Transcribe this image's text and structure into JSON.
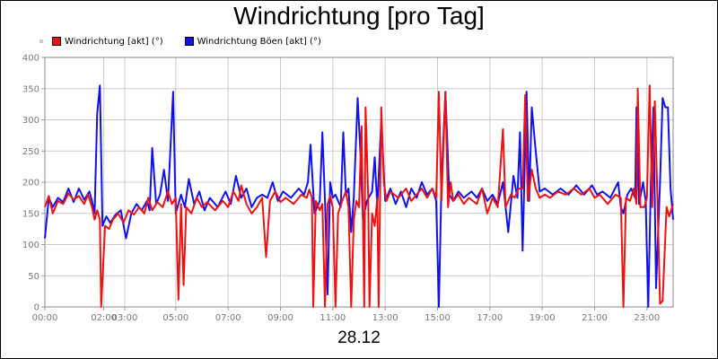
{
  "window": {
    "title": "Windrichtung [pro Tag]",
    "date_label": "28.12"
  },
  "legend": {
    "items": [
      {
        "label": "Windrichtung [akt] (°)",
        "color": "#ee1111"
      },
      {
        "label": "Windrichtung Böen [akt] (°)",
        "color": "#1111ee"
      }
    ]
  },
  "chart_data": {
    "type": "line",
    "title": "Windrichtung [pro Tag]",
    "xlabel": "28.12",
    "ylabel": "",
    "ylim": [
      0,
      400
    ],
    "xlim": [
      0,
      24
    ],
    "yticks": [
      0,
      50,
      100,
      150,
      200,
      250,
      300,
      350,
      400
    ],
    "xticks": [
      {
        "x": 0,
        "label": "00:00"
      },
      {
        "x": 2.25,
        "label": "02:00"
      },
      {
        "x": 3.05,
        "label": "03:00"
      },
      {
        "x": 5.0,
        "label": "05:00"
      },
      {
        "x": 7.0,
        "label": "07:00"
      },
      {
        "x": 9.0,
        "label": "09:00"
      },
      {
        "x": 11.0,
        "label": "11:00"
      },
      {
        "x": 13.0,
        "label": "13:00"
      },
      {
        "x": 15.0,
        "label": "15:00"
      },
      {
        "x": 17.0,
        "label": "17:00"
      },
      {
        "x": 19.0,
        "label": "19:00"
      },
      {
        "x": 21.0,
        "label": "21:00"
      },
      {
        "x": 23.0,
        "label": "23:00"
      }
    ],
    "grid": true,
    "legend_position": "top-left",
    "series": [
      {
        "name": "Windrichtung [akt] (°)",
        "color": "#ee1111",
        "points": [
          [
            0.0,
            160
          ],
          [
            0.15,
            178
          ],
          [
            0.3,
            150
          ],
          [
            0.5,
            170
          ],
          [
            0.7,
            165
          ],
          [
            0.9,
            182
          ],
          [
            1.1,
            172
          ],
          [
            1.3,
            178
          ],
          [
            1.5,
            165
          ],
          [
            1.65,
            180
          ],
          [
            1.8,
            160
          ],
          [
            1.9,
            140
          ],
          [
            2.0,
            155
          ],
          [
            2.1,
            140
          ],
          [
            2.15,
            0
          ],
          [
            2.3,
            130
          ],
          [
            2.45,
            125
          ],
          [
            2.6,
            140
          ],
          [
            2.8,
            150
          ],
          [
            3.0,
            135
          ],
          [
            3.2,
            155
          ],
          [
            3.4,
            148
          ],
          [
            3.6,
            160
          ],
          [
            3.8,
            150
          ],
          [
            3.95,
            175
          ],
          [
            4.1,
            155
          ],
          [
            4.3,
            168
          ],
          [
            4.5,
            160
          ],
          [
            4.7,
            185
          ],
          [
            4.85,
            165
          ],
          [
            5.0,
            175
          ],
          [
            5.1,
            12
          ],
          [
            5.2,
            165
          ],
          [
            5.3,
            35
          ],
          [
            5.4,
            160
          ],
          [
            5.6,
            150
          ],
          [
            5.8,
            175
          ],
          [
            6.0,
            160
          ],
          [
            6.2,
            168
          ],
          [
            6.5,
            155
          ],
          [
            6.8,
            170
          ],
          [
            7.0,
            160
          ],
          [
            7.2,
            185
          ],
          [
            7.4,
            170
          ],
          [
            7.5,
            195
          ],
          [
            7.7,
            165
          ],
          [
            7.9,
            150
          ],
          [
            8.1,
            160
          ],
          [
            8.3,
            175
          ],
          [
            8.45,
            80
          ],
          [
            8.6,
            170
          ],
          [
            8.8,
            185
          ],
          [
            9.0,
            168
          ],
          [
            9.2,
            175
          ],
          [
            9.5,
            165
          ],
          [
            9.8,
            180
          ],
          [
            10.0,
            175
          ],
          [
            10.1,
            188
          ],
          [
            10.2,
            175
          ],
          [
            10.25,
            0
          ],
          [
            10.35,
            170
          ],
          [
            10.5,
            155
          ],
          [
            10.6,
            165
          ],
          [
            10.7,
            0
          ],
          [
            10.8,
            165
          ],
          [
            10.9,
            178
          ],
          [
            11.0,
            160
          ],
          [
            11.1,
            0
          ],
          [
            11.2,
            150
          ],
          [
            11.4,
            175
          ],
          [
            11.5,
            185
          ],
          [
            11.6,
            160
          ],
          [
            11.7,
            0
          ],
          [
            11.8,
            140
          ],
          [
            11.9,
            170
          ],
          [
            12.0,
            160
          ],
          [
            12.1,
            290
          ],
          [
            12.2,
            0
          ],
          [
            12.25,
            320
          ],
          [
            12.35,
            180
          ],
          [
            12.4,
            0
          ],
          [
            12.5,
            150
          ],
          [
            12.6,
            130
          ],
          [
            12.7,
            175
          ],
          [
            12.75,
            0
          ],
          [
            12.85,
            320
          ],
          [
            12.95,
            200
          ],
          [
            13.05,
            170
          ],
          [
            13.2,
            185
          ],
          [
            13.5,
            175
          ],
          [
            13.8,
            190
          ],
          [
            14.0,
            170
          ],
          [
            14.2,
            180
          ],
          [
            14.4,
            190
          ],
          [
            14.6,
            175
          ],
          [
            14.8,
            190
          ],
          [
            14.95,
            175
          ],
          [
            15.05,
            345
          ],
          [
            15.15,
            170
          ],
          [
            15.3,
            345
          ],
          [
            15.4,
            160
          ],
          [
            15.5,
            200
          ],
          [
            15.6,
            170
          ],
          [
            15.8,
            180
          ],
          [
            16.0,
            165
          ],
          [
            16.2,
            175
          ],
          [
            16.5,
            165
          ],
          [
            16.7,
            190
          ],
          [
            16.9,
            150
          ],
          [
            17.1,
            175
          ],
          [
            17.3,
            160
          ],
          [
            17.5,
            285
          ],
          [
            17.6,
            160
          ],
          [
            17.8,
            180
          ],
          [
            17.95,
            175
          ],
          [
            18.1,
            190
          ],
          [
            18.25,
            190
          ],
          [
            18.35,
            340
          ],
          [
            18.45,
            170
          ],
          [
            18.6,
            220
          ],
          [
            18.75,
            190
          ],
          [
            18.9,
            175
          ],
          [
            19.1,
            180
          ],
          [
            19.3,
            175
          ],
          [
            19.6,
            185
          ],
          [
            19.9,
            180
          ],
          [
            20.2,
            190
          ],
          [
            20.5,
            180
          ],
          [
            20.8,
            190
          ],
          [
            21.0,
            175
          ],
          [
            21.2,
            180
          ],
          [
            21.5,
            165
          ],
          [
            21.8,
            180
          ],
          [
            22.0,
            175
          ],
          [
            22.1,
            0
          ],
          [
            22.2,
            175
          ],
          [
            22.35,
            170
          ],
          [
            22.5,
            190
          ],
          [
            22.6,
            165
          ],
          [
            22.65,
            350
          ],
          [
            22.75,
            160
          ],
          [
            22.9,
            160
          ],
          [
            23.0,
            175
          ],
          [
            23.1,
            355
          ],
          [
            23.2,
            160
          ],
          [
            23.3,
            330
          ],
          [
            23.4,
            175
          ],
          [
            23.5,
            5
          ],
          [
            23.6,
            10
          ],
          [
            23.75,
            160
          ],
          [
            23.85,
            145
          ],
          [
            24.0,
            165
          ]
        ]
      },
      {
        "name": "Windrichtung Böen [akt] (°)",
        "color": "#1111ee",
        "points": [
          [
            0.0,
            110
          ],
          [
            0.15,
            175
          ],
          [
            0.3,
            160
          ],
          [
            0.5,
            175
          ],
          [
            0.7,
            168
          ],
          [
            0.9,
            190
          ],
          [
            1.1,
            168
          ],
          [
            1.3,
            190
          ],
          [
            1.5,
            172
          ],
          [
            1.7,
            185
          ],
          [
            1.8,
            170
          ],
          [
            1.9,
            150
          ],
          [
            2.0,
            310
          ],
          [
            2.1,
            355
          ],
          [
            2.2,
            130
          ],
          [
            2.35,
            145
          ],
          [
            2.5,
            135
          ],
          [
            2.7,
            148
          ],
          [
            2.9,
            155
          ],
          [
            3.1,
            110
          ],
          [
            3.3,
            150
          ],
          [
            3.5,
            165
          ],
          [
            3.7,
            155
          ],
          [
            3.9,
            170
          ],
          [
            4.0,
            155
          ],
          [
            4.1,
            255
          ],
          [
            4.25,
            165
          ],
          [
            4.4,
            180
          ],
          [
            4.55,
            220
          ],
          [
            4.7,
            170
          ],
          [
            4.9,
            345
          ],
          [
            5.0,
            150
          ],
          [
            5.2,
            180
          ],
          [
            5.35,
            160
          ],
          [
            5.5,
            205
          ],
          [
            5.7,
            165
          ],
          [
            5.9,
            185
          ],
          [
            6.1,
            155
          ],
          [
            6.3,
            175
          ],
          [
            6.6,
            160
          ],
          [
            6.9,
            185
          ],
          [
            7.1,
            165
          ],
          [
            7.3,
            210
          ],
          [
            7.5,
            175
          ],
          [
            7.7,
            190
          ],
          [
            7.9,
            160
          ],
          [
            8.1,
            175
          ],
          [
            8.3,
            180
          ],
          [
            8.5,
            175
          ],
          [
            8.7,
            200
          ],
          [
            8.9,
            170
          ],
          [
            9.1,
            185
          ],
          [
            9.4,
            175
          ],
          [
            9.7,
            190
          ],
          [
            9.9,
            180
          ],
          [
            10.05,
            200
          ],
          [
            10.15,
            260
          ],
          [
            10.3,
            150
          ],
          [
            10.5,
            170
          ],
          [
            10.6,
            280
          ],
          [
            10.7,
            170
          ],
          [
            10.8,
            20
          ],
          [
            10.9,
            200
          ],
          [
            11.0,
            175
          ],
          [
            11.1,
            180
          ],
          [
            11.3,
            160
          ],
          [
            11.4,
            280
          ],
          [
            11.5,
            180
          ],
          [
            11.6,
            190
          ],
          [
            11.7,
            120
          ],
          [
            11.8,
            175
          ],
          [
            11.95,
            335
          ],
          [
            12.05,
            250
          ],
          [
            12.15,
            140
          ],
          [
            12.3,
            170
          ],
          [
            12.5,
            185
          ],
          [
            12.6,
            240
          ],
          [
            12.7,
            160
          ],
          [
            12.85,
            300
          ],
          [
            13.0,
            170
          ],
          [
            13.2,
            190
          ],
          [
            13.4,
            165
          ],
          [
            13.6,
            185
          ],
          [
            13.8,
            160
          ],
          [
            14.0,
            190
          ],
          [
            14.2,
            175
          ],
          [
            14.4,
            200
          ],
          [
            14.6,
            180
          ],
          [
            14.8,
            190
          ],
          [
            14.95,
            170
          ],
          [
            15.05,
            0
          ],
          [
            15.15,
            200
          ],
          [
            15.3,
            345
          ],
          [
            15.45,
            180
          ],
          [
            15.6,
            170
          ],
          [
            15.8,
            185
          ],
          [
            16.0,
            175
          ],
          [
            16.3,
            185
          ],
          [
            16.5,
            175
          ],
          [
            16.7,
            190
          ],
          [
            16.9,
            170
          ],
          [
            17.1,
            180
          ],
          [
            17.3,
            165
          ],
          [
            17.5,
            200
          ],
          [
            17.7,
            120
          ],
          [
            17.9,
            210
          ],
          [
            18.05,
            175
          ],
          [
            18.15,
            280
          ],
          [
            18.25,
            90
          ],
          [
            18.4,
            345
          ],
          [
            18.5,
            170
          ],
          [
            18.6,
            320
          ],
          [
            18.75,
            250
          ],
          [
            18.9,
            185
          ],
          [
            19.1,
            190
          ],
          [
            19.4,
            180
          ],
          [
            19.7,
            190
          ],
          [
            20.0,
            180
          ],
          [
            20.3,
            195
          ],
          [
            20.6,
            180
          ],
          [
            20.9,
            195
          ],
          [
            21.1,
            180
          ],
          [
            21.3,
            185
          ],
          [
            21.6,
            175
          ],
          [
            21.9,
            200
          ],
          [
            22.0,
            160
          ],
          [
            22.1,
            150
          ],
          [
            22.25,
            180
          ],
          [
            22.4,
            190
          ],
          [
            22.55,
            175
          ],
          [
            22.6,
            320
          ],
          [
            22.7,
            165
          ],
          [
            22.85,
            200
          ],
          [
            22.95,
            170
          ],
          [
            23.05,
            0
          ],
          [
            23.15,
            200
          ],
          [
            23.25,
            320
          ],
          [
            23.35,
            30
          ],
          [
            23.5,
            200
          ],
          [
            23.6,
            335
          ],
          [
            23.7,
            320
          ],
          [
            23.8,
            320
          ],
          [
            23.9,
            190
          ],
          [
            24.0,
            140
          ]
        ]
      }
    ]
  }
}
